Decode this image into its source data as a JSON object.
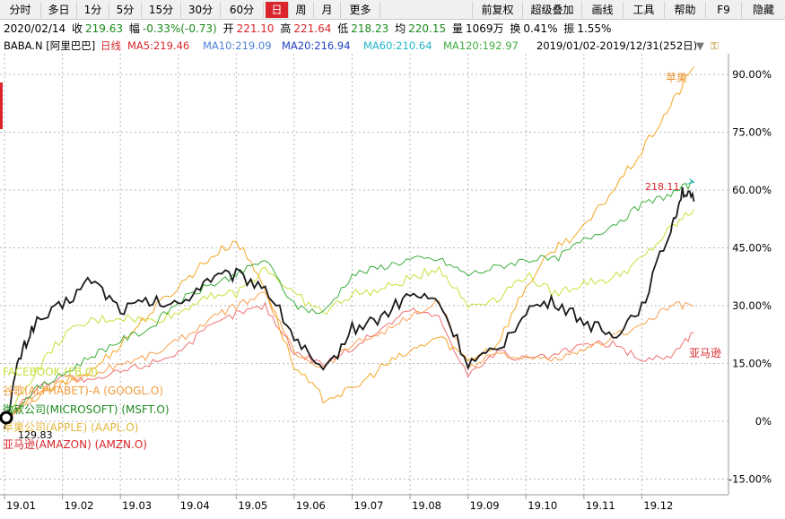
{
  "toolbar": {
    "periods": [
      "分时",
      "多日",
      "1分",
      "5分",
      "15分",
      "30分",
      "60分",
      "日",
      "周",
      "月",
      "更多"
    ],
    "active_period": "日",
    "right_tools": [
      "前复权",
      "超级叠加",
      "画线",
      "工具",
      "帮助",
      "F9",
      "隐藏"
    ]
  },
  "info": {
    "date": "2020/02/14",
    "close_label": "收",
    "close": "219.63",
    "change_label": "幅",
    "change": "-0.33%(-0.73)",
    "open_label": "开",
    "open": "221.10",
    "high_label": "高",
    "high": "221.64",
    "low_label": "低",
    "low": "218.23",
    "avg_label": "均",
    "avg": "220.15",
    "volume_label": "量",
    "volume": "1069万",
    "turnover_label": "换",
    "turnover": "0.41%",
    "amplitude_label": "振",
    "amplitude": "1.55%"
  },
  "ma_line": {
    "symbol": "BABA.N [阿里巴巴]",
    "period": "日线",
    "ma5": "MA5:219.46",
    "ma10": "MA10:219.09",
    "ma20": "MA20:216.94",
    "ma60": "MA60:210.64",
    "ma120": "MA120:192.97",
    "range": "2019/01/02-2019/12/31(252日)",
    "colors": {
      "ma5": "#d9252b",
      "ma10": "#4a7fd6",
      "ma20": "#1f3fbf",
      "ma60": "#1fb5c9",
      "ma120": "#3fae3f"
    }
  },
  "chart_data": {
    "type": "line",
    "x_ticks": [
      "19.01",
      "19.02",
      "19.03",
      "19.04",
      "19.05",
      "19.06",
      "19.07",
      "19.08",
      "19.09",
      "19.10",
      "19.11",
      "19.12"
    ],
    "y_ticks": [
      "90.00%",
      "75.00%",
      "60.00%",
      "45.00%",
      "30.00%",
      "15.00%",
      "0%",
      "-15.00%"
    ],
    "ylim": [
      -17,
      100
    ],
    "series": [
      {
        "name": "阿里巴巴",
        "color": "#1a1a1a",
        "x": [
          0,
          0.25,
          0.5,
          1,
          1.5,
          2,
          2.5,
          3,
          3.5,
          4,
          4.5,
          5,
          5.5,
          6,
          6.5,
          7,
          7.5,
          8,
          8.5,
          9,
          9.5,
          10,
          10.5,
          11,
          11.5,
          11.7,
          11.9
        ],
        "y": [
          -2,
          16,
          25,
          30,
          37,
          29,
          31,
          30,
          37,
          38,
          35,
          22,
          12,
          24,
          27,
          33,
          31,
          15,
          18,
          29,
          31,
          26,
          22,
          30,
          50,
          60,
          57
        ]
      },
      {
        "name": "苹果",
        "color": "#f5a623",
        "x": [
          0,
          0.5,
          1,
          1.5,
          2,
          2.5,
          3,
          3.5,
          4,
          4.5,
          5,
          5.5,
          6,
          6.5,
          7,
          7.5,
          8,
          8.5,
          9,
          9.5,
          10,
          10.5,
          11,
          11.5,
          11.9
        ],
        "y": [
          0,
          6,
          10,
          13,
          20,
          28,
          35,
          42,
          47,
          35,
          14,
          6,
          8,
          14,
          18,
          22,
          16,
          20,
          35,
          45,
          50,
          60,
          70,
          82,
          92
        ]
      },
      {
        "name": "微软",
        "color": "#3fae3f",
        "x": [
          0,
          0.5,
          1,
          1.5,
          2,
          2.5,
          3,
          3.5,
          4,
          4.5,
          5,
          5.5,
          6,
          6.5,
          7,
          7.5,
          8,
          8.5,
          9,
          9.5,
          10,
          10.5,
          11,
          11.5,
          11.9
        ],
        "y": [
          0,
          8,
          12,
          17,
          21,
          24,
          31,
          35,
          38,
          42,
          30,
          28,
          38,
          40,
          42,
          42,
          38,
          40,
          42,
          42,
          47,
          51,
          56,
          59,
          62
        ]
      },
      {
        "name": "FACEBOOK",
        "color": "#c9e03a",
        "x": [
          0,
          0.5,
          1,
          1.5,
          2,
          2.5,
          3,
          3.5,
          4,
          4.5,
          5,
          5.5,
          6,
          6.5,
          7,
          7.5,
          8,
          8.5,
          9,
          9.5,
          10,
          10.5,
          11,
          11.5,
          11.9
        ],
        "y": [
          0,
          12,
          22,
          26,
          27,
          26,
          28,
          33,
          33,
          40,
          33,
          28,
          33,
          34,
          37,
          40,
          30,
          32,
          38,
          33,
          36,
          37,
          42,
          50,
          55
        ]
      },
      {
        "name": "谷歌",
        "color": "#f9a04f",
        "x": [
          0,
          0.5,
          1,
          1.5,
          2,
          2.5,
          3,
          3.5,
          4,
          4.5,
          5,
          5.5,
          6,
          6.5,
          7,
          7.5,
          8,
          8.5,
          9,
          9.5,
          10,
          10.5,
          11,
          11.5,
          11.9
        ],
        "y": [
          0,
          6,
          10,
          12,
          15,
          17,
          21,
          26,
          30,
          33,
          18,
          14,
          20,
          23,
          27,
          31,
          14,
          18,
          16,
          16,
          18,
          22,
          25,
          30,
          30
        ]
      },
      {
        "name": "亚马逊",
        "color": "#f07171",
        "x": [
          0,
          0.5,
          1,
          1.5,
          2,
          2.5,
          3,
          3.5,
          4,
          4.5,
          5,
          5.5,
          6,
          6.5,
          7,
          7.5,
          8,
          8.5,
          9,
          9.5,
          10,
          10.5,
          11,
          11.5,
          11.9
        ],
        "y": [
          0,
          8,
          12,
          10,
          13,
          15,
          18,
          24,
          28,
          30,
          18,
          15,
          19,
          24,
          29,
          27,
          12,
          18,
          16,
          17,
          20,
          20,
          16,
          17,
          23
        ]
      }
    ],
    "end_labels": {
      "apple": "苹果",
      "amazon": "亚马逊",
      "baba_value": "218.11"
    },
    "legend": [
      "FACEBOOK (FB.O)",
      "谷歌(ALPHABET)-A (GOOGL.O)",
      "微软公司(MICROSOFT) (MSFT.O)",
      "苹果公司(APPLE) (AAPL.O)",
      "亚马逊(AMAZON) (AMZN.O)"
    ],
    "start_value": "129.83"
  }
}
